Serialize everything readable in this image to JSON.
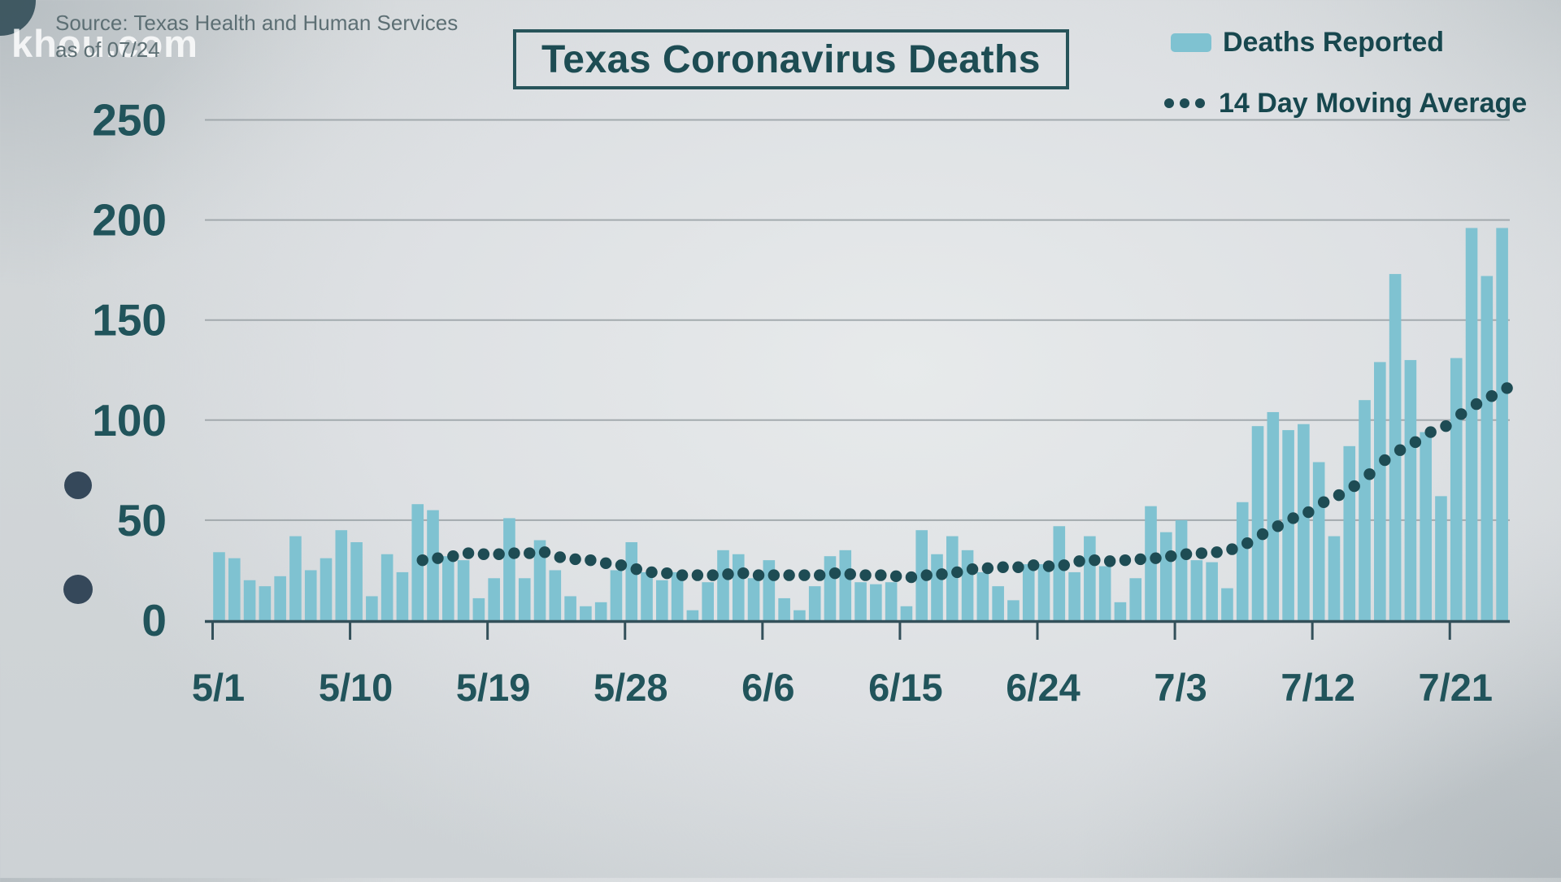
{
  "watermark": "khou.com",
  "source": {
    "line1": "Source: Texas Health and Human Services",
    "line2": "as of 07/24"
  },
  "title": "Texas Coronavirus Deaths",
  "legend": {
    "bars_label": "Deaths Reported",
    "line_label": "14 Day Moving Average"
  },
  "colors": {
    "bar": "#7fc2d1",
    "dot": "#1e4c54",
    "axis_text": "#21545b",
    "grid": "#99a1a5",
    "baseline": "#33505a",
    "tick": "#33505a"
  },
  "chart_data": {
    "type": "bar",
    "title": "Texas Coronavirus Deaths",
    "ylabel": "",
    "xlabel": "",
    "ylim": [
      0,
      250
    ],
    "y_ticks": [
      0,
      50,
      100,
      150,
      200,
      250
    ],
    "grid": "horizontal",
    "legend_position": "top-right",
    "x_tick_labels": [
      "5/1",
      "5/10",
      "5/19",
      "5/28",
      "6/6",
      "6/15",
      "6/24",
      "7/3",
      "7/12",
      "7/21"
    ],
    "x_tick_day_interval": 9,
    "dates": [
      "5/1",
      "5/2",
      "5/3",
      "5/4",
      "5/5",
      "5/6",
      "5/7",
      "5/8",
      "5/9",
      "5/10",
      "5/11",
      "5/12",
      "5/13",
      "5/14",
      "5/15",
      "5/16",
      "5/17",
      "5/18",
      "5/19",
      "5/20",
      "5/21",
      "5/22",
      "5/23",
      "5/24",
      "5/25",
      "5/26",
      "5/27",
      "5/28",
      "5/29",
      "5/30",
      "5/31",
      "6/1",
      "6/2",
      "6/3",
      "6/4",
      "6/5",
      "6/6",
      "6/7",
      "6/8",
      "6/9",
      "6/10",
      "6/11",
      "6/12",
      "6/13",
      "6/14",
      "6/15",
      "6/16",
      "6/17",
      "6/18",
      "6/19",
      "6/20",
      "6/21",
      "6/22",
      "6/23",
      "6/24",
      "6/25",
      "6/26",
      "6/27",
      "6/28",
      "6/29",
      "6/30",
      "7/1",
      "7/2",
      "7/3",
      "7/4",
      "7/5",
      "7/6",
      "7/7",
      "7/8",
      "7/9",
      "7/10",
      "7/11",
      "7/12",
      "7/13",
      "7/14",
      "7/15",
      "7/16",
      "7/17",
      "7/18",
      "7/19",
      "7/20",
      "7/21",
      "7/22",
      "7/23",
      "7/24"
    ],
    "series": [
      {
        "name": "Deaths Reported",
        "type": "bar",
        "values": [
          34,
          31,
          20,
          17,
          22,
          42,
          25,
          31,
          45,
          39,
          12,
          33,
          24,
          58,
          55,
          32,
          30,
          11,
          21,
          51,
          21,
          40,
          25,
          12,
          7,
          9,
          25,
          39,
          24,
          20,
          24,
          5,
          19,
          35,
          33,
          21,
          30,
          11,
          5,
          17,
          32,
          35,
          19,
          18,
          19,
          7,
          45,
          33,
          42,
          35,
          24,
          17,
          10,
          28,
          28,
          47,
          24,
          42,
          27,
          9,
          21,
          57,
          44,
          50,
          30,
          29,
          16,
          59,
          97,
          104,
          95,
          98,
          79,
          42,
          87,
          110,
          129,
          173,
          130,
          94,
          62,
          131,
          196,
          172,
          196
        ]
      },
      {
        "name": "14 Day Moving Average",
        "type": "dotted-line",
        "start_date": "5/14",
        "start_index": 13,
        "values": [
          30,
          31,
          32,
          33.5,
          33,
          33,
          33.5,
          33.5,
          34,
          31.5,
          30.5,
          30,
          28.5,
          27.5,
          25.5,
          24,
          23.5,
          22.5,
          22.5,
          22.5,
          23,
          23.5,
          22.5,
          22.5,
          22.5,
          22.5,
          22.5,
          23.5,
          23,
          22.5,
          22.5,
          22,
          21.5,
          22.5,
          23,
          24,
          25.5,
          26,
          26.5,
          26.5,
          27.5,
          27,
          27.5,
          29.5,
          30,
          29.5,
          30,
          30.5,
          31,
          32,
          33,
          33.5,
          34,
          35.5,
          38.5,
          43,
          47,
          51,
          54,
          59,
          62.5,
          67,
          73,
          80,
          85,
          89,
          94,
          97,
          103,
          108,
          112,
          116
        ]
      }
    ]
  }
}
